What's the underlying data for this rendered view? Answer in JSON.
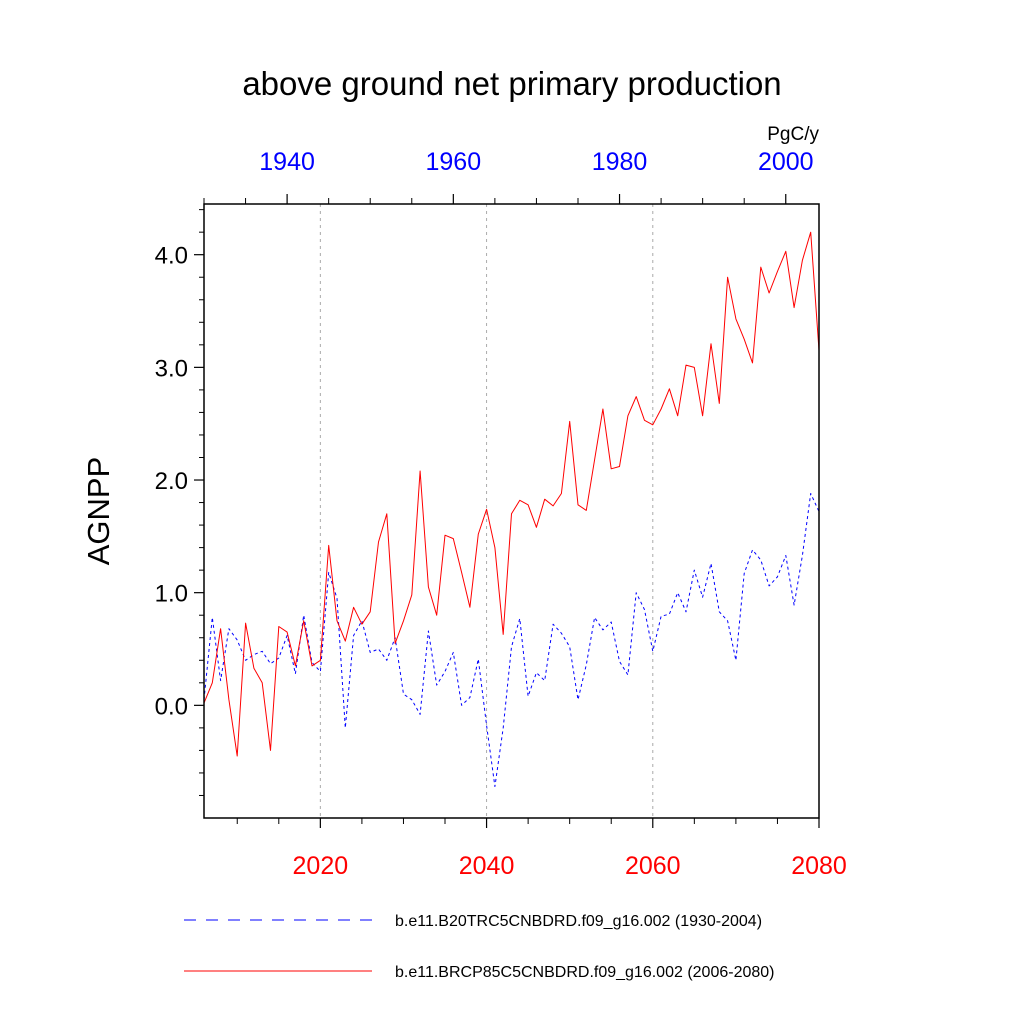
{
  "chart_data": {
    "type": "line",
    "title": "above ground net primary production",
    "ylabel": "AGNPP",
    "units": "PgC/y",
    "ylim": [
      -1.0,
      4.45
    ],
    "yticks": [
      0.0,
      1.0,
      2.0,
      3.0,
      4.0
    ],
    "ytick_labels": [
      "0.0",
      "1.0",
      "2.0",
      "3.0",
      "4.0"
    ],
    "grid": "vertical dotted lines at bottom-axis major ticks",
    "legend_position": "bottom",
    "bottom_axis": {
      "range": [
        2006,
        2080
      ],
      "ticks": [
        2020,
        2040,
        2060,
        2080
      ],
      "tick_labels": [
        "2020",
        "2040",
        "2060",
        "2080"
      ],
      "color": "#ff0000"
    },
    "top_axis": {
      "range": [
        1930,
        2004
      ],
      "ticks": [
        1940,
        1960,
        1980,
        2000
      ],
      "tick_labels": [
        "1940",
        "1960",
        "1980",
        "2000"
      ],
      "color": "#0000ff"
    },
    "series": [
      {
        "name": "b.e11.B20TRC5CNBDRD.f09_g16.002 (1930-2004)",
        "axis": "top",
        "color": "#0000ff",
        "dash": "dashed",
        "x_start": 1930,
        "values": [
          0.05,
          0.78,
          0.22,
          0.68,
          0.58,
          0.4,
          0.45,
          0.48,
          0.37,
          0.42,
          0.62,
          0.28,
          0.8,
          0.38,
          0.3,
          1.18,
          0.95,
          -0.2,
          0.62,
          0.75,
          0.47,
          0.5,
          0.4,
          0.6,
          0.1,
          0.05,
          -0.08,
          0.66,
          0.18,
          0.3,
          0.47,
          0.0,
          0.07,
          0.41,
          -0.18,
          -0.72,
          -0.2,
          0.52,
          0.77,
          0.08,
          0.29,
          0.22,
          0.72,
          0.64,
          0.52,
          0.05,
          0.36,
          0.78,
          0.67,
          0.74,
          0.39,
          0.27,
          1.0,
          0.85,
          0.48,
          0.79,
          0.81,
          1.0,
          0.83,
          1.2,
          0.96,
          1.26,
          0.83,
          0.75,
          0.4,
          1.17,
          1.38,
          1.29,
          1.06,
          1.14,
          1.33,
          0.89,
          1.33,
          1.88,
          1.72
        ]
      },
      {
        "name": "b.e11.BRCP85C5CNBDRD.f09_g16.002 (2006-2080)",
        "axis": "bottom",
        "color": "#ff0000",
        "dash": "solid",
        "x_start": 2006,
        "values": [
          0.02,
          0.2,
          0.68,
          0.05,
          -0.45,
          0.73,
          0.33,
          0.2,
          -0.4,
          0.7,
          0.65,
          0.35,
          0.75,
          0.35,
          0.4,
          1.42,
          0.75,
          0.57,
          0.87,
          0.72,
          0.83,
          1.45,
          1.7,
          0.55,
          0.75,
          0.98,
          2.08,
          1.05,
          0.8,
          1.51,
          1.48,
          1.18,
          0.87,
          1.52,
          1.74,
          1.4,
          0.63,
          1.7,
          1.82,
          1.78,
          1.58,
          1.83,
          1.77,
          1.88,
          2.52,
          1.78,
          1.73,
          2.18,
          2.63,
          2.1,
          2.12,
          2.57,
          2.74,
          2.53,
          2.49,
          2.63,
          2.81,
          2.57,
          3.02,
          3.0,
          2.57,
          3.21,
          2.68,
          3.8,
          3.43,
          3.25,
          3.04,
          3.89,
          3.66,
          3.85,
          4.03,
          3.53,
          3.95,
          4.2,
          3.15
        ]
      }
    ]
  }
}
